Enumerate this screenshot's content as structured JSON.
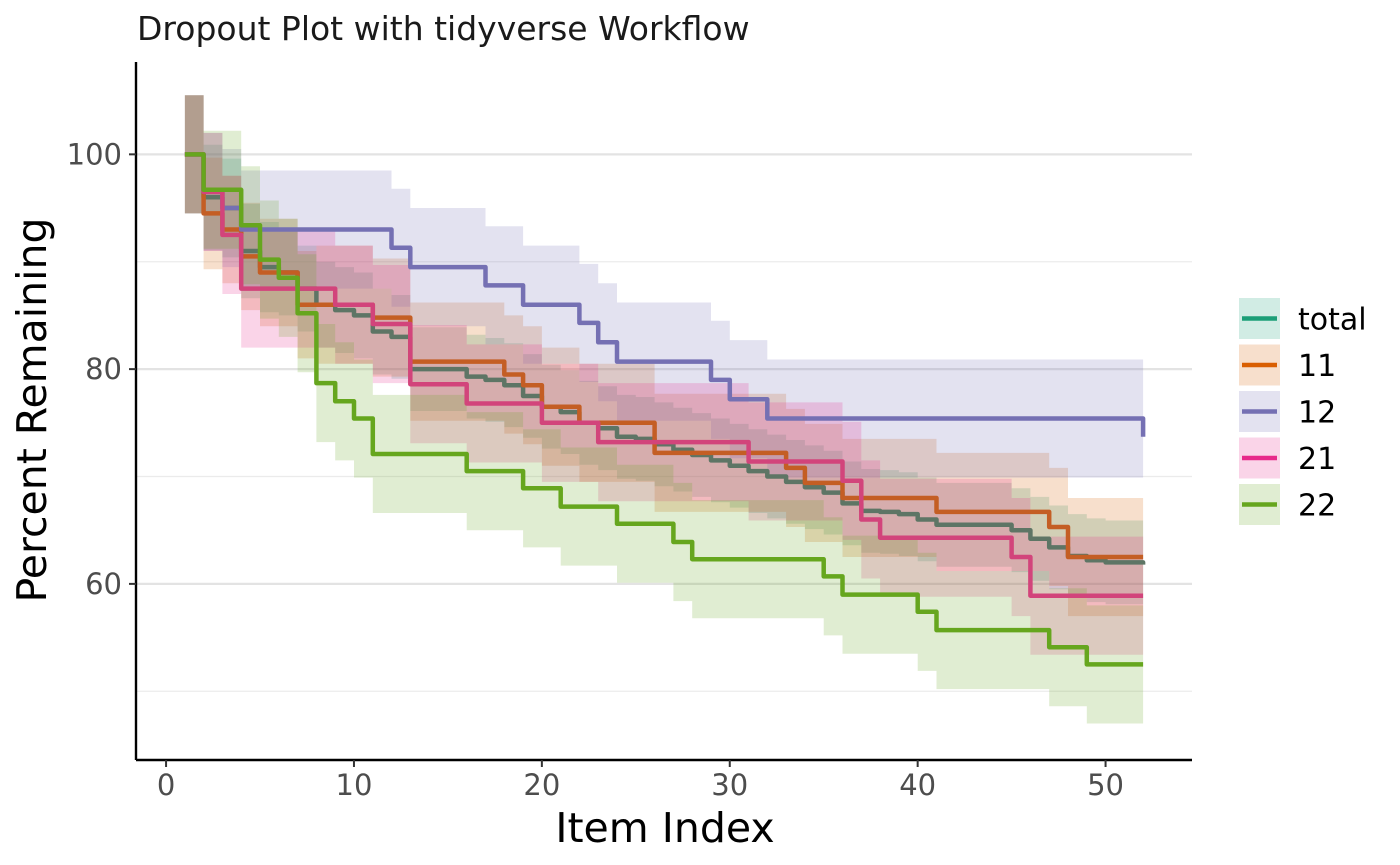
{
  "chart_data": {
    "type": "line",
    "title": "Dropout Plot with tidyverse Workflow",
    "xlabel": "Item Index",
    "ylabel": "Percent Remaining",
    "xlim": [
      -1.6,
      54.6
    ],
    "ylim": [
      43.6,
      108.6
    ],
    "x_ticks": [
      0,
      10,
      20,
      30,
      40,
      50
    ],
    "y_ticks": [
      60,
      80,
      100
    ],
    "y_minor_gridlines": [
      50,
      70,
      90
    ],
    "grid": "horizontal",
    "legend_position": "right",
    "band": "confidence ribbon around each line",
    "series": [
      {
        "name": "total",
        "color": "#1B9E77",
        "line_color": "#5E7565",
        "band_color": "#1B9E77",
        "band_halfwidth": [
          5.5,
          4.9,
          4.6,
          4.4,
          4.2,
          4.0,
          4.0,
          4.0,
          4.0,
          4.0,
          4.0,
          3.9,
          3.9,
          3.9,
          3.9,
          3.9,
          3.9,
          3.9,
          3.9,
          3.9,
          3.9,
          3.9,
          3.9,
          3.9,
          3.9,
          3.9,
          3.9,
          3.9,
          3.9,
          3.9,
          3.9,
          3.9,
          3.9,
          3.9,
          3.9,
          3.9,
          3.9,
          3.9,
          3.9,
          3.9,
          3.9,
          3.9,
          3.9,
          3.9,
          3.9,
          3.9,
          3.9,
          3.9,
          3.9,
          3.9,
          3.9,
          3.9
        ],
        "x": [
          1,
          2,
          3,
          4,
          5,
          6,
          7,
          8,
          9,
          10,
          11,
          12,
          13,
          14,
          15,
          16,
          17,
          18,
          19,
          20,
          21,
          22,
          23,
          24,
          25,
          26,
          27,
          28,
          29,
          30,
          31,
          32,
          33,
          34,
          35,
          36,
          37,
          38,
          39,
          40,
          41,
          42,
          43,
          44,
          45,
          46,
          47,
          48,
          49,
          50,
          51,
          52
        ],
        "y": [
          100,
          96,
          95,
          91,
          89.5,
          89,
          87.5,
          86,
          85.5,
          85,
          83.5,
          83,
          80,
          80,
          80,
          79.3,
          79,
          78.5,
          77.5,
          76.5,
          76,
          75,
          74.5,
          73.7,
          73.5,
          73,
          72.5,
          72,
          71.5,
          71,
          70.5,
          70,
          69.5,
          69,
          68.5,
          67.5,
          66.8,
          66.7,
          66.5,
          66,
          65.5,
          65.5,
          65.5,
          65.5,
          65,
          64.2,
          63.4,
          62.6,
          62.2,
          62,
          62,
          61.8
        ]
      },
      {
        "name": "11",
        "color": "#D95F02",
        "line_color": "#C45E24",
        "band_color": "#D95F02",
        "band_halfwidth": [
          5.5,
          5.2,
          5.0,
          5.0,
          5.0,
          5.0,
          5.0,
          5.5,
          5.5,
          5.5,
          5.5,
          5.5,
          5.5,
          5.5,
          5.5,
          5.5,
          5.5,
          5.5,
          5.5,
          5.5,
          5.5,
          5.5,
          5.5,
          5.5,
          5.5,
          5.5,
          5.5,
          5.5,
          5.5,
          5.5,
          5.5,
          5.5,
          5.5,
          5.5,
          5.5,
          5.5,
          5.5,
          5.5,
          5.5,
          5.5,
          5.5,
          5.5,
          5.5,
          5.5,
          5.5,
          5.5,
          5.5,
          5.5,
          5.5,
          5.5,
          5.5,
          5.5
        ],
        "x": [
          1,
          2,
          3,
          4,
          5,
          6,
          7,
          8,
          9,
          10,
          11,
          12,
          13,
          14,
          15,
          16,
          17,
          18,
          19,
          20,
          21,
          22,
          23,
          24,
          25,
          26,
          27,
          28,
          29,
          30,
          31,
          32,
          33,
          34,
          35,
          36,
          37,
          38,
          39,
          40,
          41,
          42,
          43,
          44,
          45,
          46,
          47,
          48,
          49,
          50,
          51,
          52
        ],
        "y": [
          100,
          94.5,
          93,
          90.5,
          89,
          89,
          86,
          86,
          86,
          86,
          84.8,
          84.8,
          80.7,
          80.7,
          80.7,
          80.7,
          80.7,
          79.5,
          78.5,
          76.5,
          76.5,
          75,
          75,
          75,
          75,
          72.2,
          72.2,
          72.2,
          72.2,
          72.2,
          72.2,
          72.2,
          70.8,
          69.4,
          69.4,
          68,
          68,
          68,
          68,
          68,
          66.7,
          66.7,
          66.7,
          66.7,
          66.7,
          66.7,
          65.3,
          62.5,
          62.5,
          62.5,
          62.5,
          62.5
        ]
      },
      {
        "name": "12",
        "color": "#7570B3",
        "line_color": "#7570B3",
        "band_color": "#7570B3",
        "band_halfwidth": [
          5.5,
          5.5,
          5.5,
          5.5,
          5.5,
          5.5,
          5.5,
          5.5,
          5.5,
          5.5,
          5.5,
          5.5,
          5.5,
          5.5,
          5.5,
          5.5,
          5.5,
          5.5,
          5.5,
          5.5,
          5.5,
          5.5,
          5.5,
          5.5,
          5.5,
          5.5,
          5.5,
          5.5,
          5.5,
          5.5,
          5.5,
          5.5,
          5.5,
          5.5,
          5.5,
          5.5,
          5.5,
          5.5,
          5.5,
          5.5,
          5.5,
          5.5,
          5.5,
          5.5,
          5.5,
          5.5,
          5.5,
          5.5,
          5.5,
          5.5,
          5.5,
          5.5
        ],
        "x": [
          1,
          2,
          3,
          4,
          5,
          6,
          7,
          8,
          9,
          10,
          11,
          12,
          13,
          14,
          15,
          16,
          17,
          18,
          19,
          20,
          21,
          22,
          23,
          24,
          25,
          26,
          27,
          28,
          29,
          30,
          31,
          32,
          33,
          34,
          35,
          36,
          37,
          38,
          39,
          40,
          41,
          42,
          43,
          44,
          45,
          46,
          47,
          48,
          49,
          50,
          51,
          52
        ],
        "y": [
          100,
          96.5,
          95,
          93,
          93,
          93,
          93,
          93,
          93,
          93,
          93,
          91.3,
          89.5,
          89.5,
          89.5,
          89.5,
          87.8,
          87.8,
          86,
          86,
          86,
          84.3,
          82.5,
          80.7,
          80.7,
          80.7,
          80.7,
          80.7,
          79,
          77.2,
          77.2,
          75.4,
          75.4,
          75.4,
          75.4,
          75.4,
          75.4,
          75.4,
          75.4,
          75.4,
          75.4,
          75.4,
          75.4,
          75.4,
          75.4,
          75.4,
          75.4,
          75.4,
          75.4,
          75.4,
          75.4,
          73.7
        ]
      },
      {
        "name": "21",
        "color": "#E7298A",
        "line_color": "#D2447B",
        "band_color": "#E7298A",
        "band_halfwidth": [
          5.5,
          5.5,
          5.5,
          5.5,
          5.5,
          5.5,
          5.5,
          5.5,
          5.5,
          5.5,
          5.5,
          5.5,
          5.5,
          5.5,
          5.5,
          5.5,
          5.5,
          5.5,
          5.5,
          5.5,
          5.5,
          5.5,
          5.5,
          5.5,
          5.5,
          5.5,
          5.5,
          5.5,
          5.5,
          5.5,
          5.5,
          5.5,
          5.5,
          5.5,
          5.5,
          5.5,
          5.5,
          5.5,
          5.5,
          5.5,
          5.5,
          5.5,
          5.5,
          5.5,
          5.5,
          5.5,
          5.5,
          5.5,
          5.5,
          5.5,
          5.5,
          5.5
        ],
        "x": [
          1,
          2,
          3,
          4,
          5,
          6,
          7,
          8,
          9,
          10,
          11,
          12,
          13,
          14,
          15,
          16,
          17,
          18,
          19,
          20,
          21,
          22,
          23,
          24,
          25,
          26,
          27,
          28,
          29,
          30,
          31,
          32,
          33,
          34,
          35,
          36,
          37,
          38,
          39,
          40,
          41,
          42,
          43,
          44,
          45,
          46,
          47,
          48,
          49,
          50,
          51,
          52
        ],
        "y": [
          100,
          96.5,
          92.5,
          87.5,
          87.5,
          87.5,
          87.5,
          87.5,
          86,
          86,
          84.2,
          84.2,
          78.6,
          78.6,
          78.6,
          76.8,
          76.8,
          76.8,
          76.8,
          75,
          75,
          75,
          73.2,
          73.2,
          73.2,
          73.2,
          73.2,
          73.2,
          73.2,
          73.2,
          71.4,
          71.4,
          71.4,
          71.4,
          71.4,
          69.6,
          66,
          64.3,
          64.3,
          64.3,
          64.3,
          64.3,
          64.3,
          64.3,
          62.5,
          58.9,
          58.9,
          58.9,
          58.9,
          58.9,
          58.9,
          58.9
        ]
      },
      {
        "name": "22",
        "color": "#66A61E",
        "line_color": "#66A61E",
        "band_color": "#66A61E",
        "band_halfwidth": [
          5.5,
          5.5,
          5.5,
          5.5,
          5.5,
          5.5,
          5.5,
          5.5,
          5.5,
          5.5,
          5.5,
          5.5,
          5.5,
          5.5,
          5.5,
          5.5,
          5.5,
          5.5,
          5.5,
          5.5,
          5.5,
          5.5,
          5.5,
          5.5,
          5.5,
          5.5,
          5.5,
          5.5,
          5.5,
          5.5,
          5.5,
          5.5,
          5.5,
          5.5,
          5.5,
          5.5,
          5.5,
          5.5,
          5.5,
          5.5,
          5.5,
          5.5,
          5.5,
          5.5,
          5.5,
          5.5,
          5.5,
          5.5,
          5.5,
          5.5,
          5.5,
          5.5
        ],
        "x": [
          1,
          2,
          3,
          4,
          5,
          6,
          7,
          8,
          9,
          10,
          11,
          12,
          13,
          14,
          15,
          16,
          17,
          18,
          19,
          20,
          21,
          22,
          23,
          24,
          25,
          26,
          27,
          28,
          29,
          30,
          31,
          32,
          33,
          34,
          35,
          36,
          37,
          38,
          39,
          40,
          41,
          42,
          43,
          44,
          45,
          46,
          47,
          48,
          49,
          50,
          51,
          52
        ],
        "y": [
          100,
          96.7,
          96.7,
          93.4,
          90.2,
          88.5,
          85.2,
          78.7,
          77,
          75.4,
          72.1,
          72.1,
          72.1,
          72.1,
          72.1,
          70.5,
          70.5,
          70.5,
          68.9,
          68.9,
          67.2,
          67.2,
          67.2,
          65.6,
          65.6,
          65.6,
          63.9,
          62.3,
          62.3,
          62.3,
          62.3,
          62.3,
          62.3,
          62.3,
          60.7,
          59,
          59,
          59,
          59,
          57.4,
          55.7,
          55.7,
          55.7,
          55.7,
          55.7,
          55.7,
          54.1,
          54.1,
          52.5,
          52.5,
          52.5,
          52.5
        ]
      }
    ]
  }
}
